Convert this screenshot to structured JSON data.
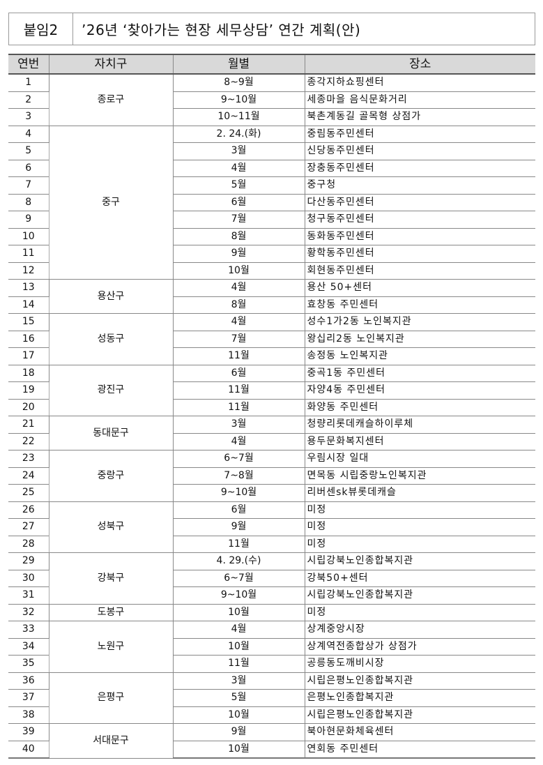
{
  "title": {
    "label": "붙임2",
    "text": "’26년 ‘찾아가는 현장 세무상담’ 연간 계획(안)"
  },
  "table": {
    "headers": [
      "연번",
      "자치구",
      "월별",
      "장소"
    ],
    "districts": [
      {
        "name": "종로구",
        "rows": [
          [
            "1",
            "8~9월",
            "종각지하쇼핑센터"
          ],
          [
            "2",
            "9~10월",
            "세종마을 음식문화거리"
          ],
          [
            "3",
            "10~11월",
            "북촌계동길 골목형 상점가"
          ]
        ]
      },
      {
        "name": "중구",
        "rows": [
          [
            "4",
            "2. 24.(화)",
            "중림동주민센터"
          ],
          [
            "5",
            "3월",
            "신당동주민센터"
          ],
          [
            "6",
            "4월",
            "장충동주민센터"
          ],
          [
            "7",
            "5월",
            "중구청"
          ],
          [
            "8",
            "6월",
            "다산동주민센터"
          ],
          [
            "9",
            "7월",
            "청구동주민센터"
          ],
          [
            "10",
            "8월",
            "동화동주민센터"
          ],
          [
            "11",
            "9월",
            "황학동주민센터"
          ],
          [
            "12",
            "10월",
            "회현동주민센터"
          ]
        ]
      },
      {
        "name": "용산구",
        "rows": [
          [
            "13",
            "4월",
            "용산 50+센터"
          ],
          [
            "14",
            "8월",
            "효창동 주민센터"
          ]
        ]
      },
      {
        "name": "성동구",
        "rows": [
          [
            "15",
            "4월",
            "성수1가2동 노인복지관"
          ],
          [
            "16",
            "7월",
            "왕십리2동 노인복지관"
          ],
          [
            "17",
            "11월",
            "송정동 노인복지관"
          ]
        ]
      },
      {
        "name": "광진구",
        "rows": [
          [
            "18",
            "6월",
            "중곡1동 주민센터"
          ],
          [
            "19",
            "11월",
            "자양4동 주민센터"
          ],
          [
            "20",
            "11월",
            "화양동 주민센터"
          ]
        ]
      },
      {
        "name": "동대문구",
        "rows": [
          [
            "21",
            "3월",
            "청량리롯데캐슬하이루체"
          ],
          [
            "22",
            "4월",
            "용두문화복지센터"
          ]
        ]
      },
      {
        "name": "중랑구",
        "rows": [
          [
            "23",
            "6~7월",
            "우림시장 일대"
          ],
          [
            "24",
            "7~8월",
            "면목동 시립중랑노인복지관"
          ],
          [
            "25",
            "9~10월",
            "리버센sk뷰롯데캐슬"
          ]
        ]
      },
      {
        "name": "성북구",
        "rows": [
          [
            "26",
            "6월",
            "미정"
          ],
          [
            "27",
            "9월",
            "미정"
          ],
          [
            "28",
            "11월",
            "미정"
          ]
        ]
      },
      {
        "name": "강북구",
        "rows": [
          [
            "29",
            "4. 29.(수)",
            "시립강북노인종합복지관"
          ],
          [
            "30",
            "6~7월",
            "강북50+센터"
          ],
          [
            "31",
            "9~10월",
            "시립강북노인종합복지관"
          ]
        ]
      },
      {
        "name": "도봉구",
        "rows": [
          [
            "32",
            "10월",
            "미정"
          ]
        ]
      },
      {
        "name": "노원구",
        "rows": [
          [
            "33",
            "4월",
            "상계중앙시장"
          ],
          [
            "34",
            "10월",
            "상계역전종합상가 상점가"
          ],
          [
            "35",
            "11월",
            "공릉동도깨비시장"
          ]
        ]
      },
      {
        "name": "은평구",
        "rows": [
          [
            "36",
            "3월",
            "시립은평노인종합복지관"
          ],
          [
            "37",
            "5월",
            "은평노인종합복지관"
          ],
          [
            "38",
            "10월",
            "시립은평노인종합복지관"
          ]
        ]
      },
      {
        "name": "서대문구",
        "rows": [
          [
            "39",
            "9월",
            "북아현문화체육센터"
          ],
          [
            "40",
            "10월",
            "연회동 주민센터"
          ]
        ]
      }
    ]
  }
}
